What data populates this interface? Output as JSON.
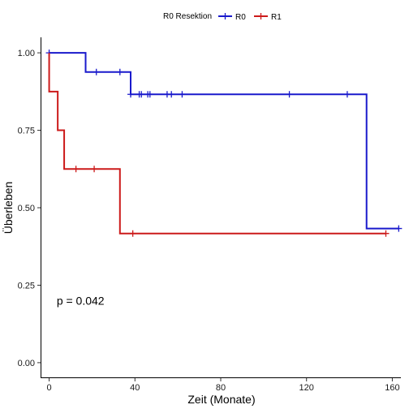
{
  "chart_data": {
    "type": "line",
    "subtype": "kaplan-meier-step",
    "xlabel": "Zeit (Monate)",
    "ylabel": "Überleben",
    "xlim": [
      -4,
      164
    ],
    "ylim": [
      -0.05,
      1.05
    ],
    "x_ticks": [
      0,
      40,
      80,
      120,
      160
    ],
    "x_tick_labels": [
      "0",
      "40",
      "80",
      "120",
      "160"
    ],
    "y_ticks": [
      0,
      0.25,
      0.5,
      0.75,
      1.0
    ],
    "y_tick_labels": [
      "0.00",
      "0.25",
      "0.50",
      "0.75",
      "1.00"
    ],
    "grid": false,
    "legend": {
      "title": "R0 Resektion",
      "position": "top",
      "entries": [
        "R0",
        "R1"
      ]
    },
    "annotation": {
      "text": "p = 0.042",
      "x": 3.5,
      "y": 0.2
    },
    "series": [
      {
        "name": "R0",
        "color": "#1a1acc",
        "steps": [
          [
            0,
            1.0
          ],
          [
            17,
            0.938
          ],
          [
            38,
            0.866
          ],
          [
            148,
            0.433
          ],
          [
            163,
            0.433
          ]
        ],
        "censored": [
          [
            0,
            1.0
          ],
          [
            22,
            0.938
          ],
          [
            33,
            0.938
          ],
          [
            38,
            0.866
          ],
          [
            42,
            0.866
          ],
          [
            43,
            0.866
          ],
          [
            46,
            0.866
          ],
          [
            47,
            0.866
          ],
          [
            55,
            0.866
          ],
          [
            57,
            0.866
          ],
          [
            62,
            0.866
          ],
          [
            112,
            0.866
          ],
          [
            139,
            0.866
          ],
          [
            163,
            0.433
          ]
        ]
      },
      {
        "name": "R1",
        "color": "#cc1a1a",
        "steps": [
          [
            0,
            1.0
          ],
          [
            0,
            0.875
          ],
          [
            4,
            0.75
          ],
          [
            7,
            0.625
          ],
          [
            33,
            0.417
          ],
          [
            157,
            0.417
          ]
        ],
        "censored": [
          [
            12.5,
            0.625
          ],
          [
            21,
            0.625
          ],
          [
            39,
            0.417
          ],
          [
            157,
            0.417
          ]
        ]
      }
    ]
  }
}
